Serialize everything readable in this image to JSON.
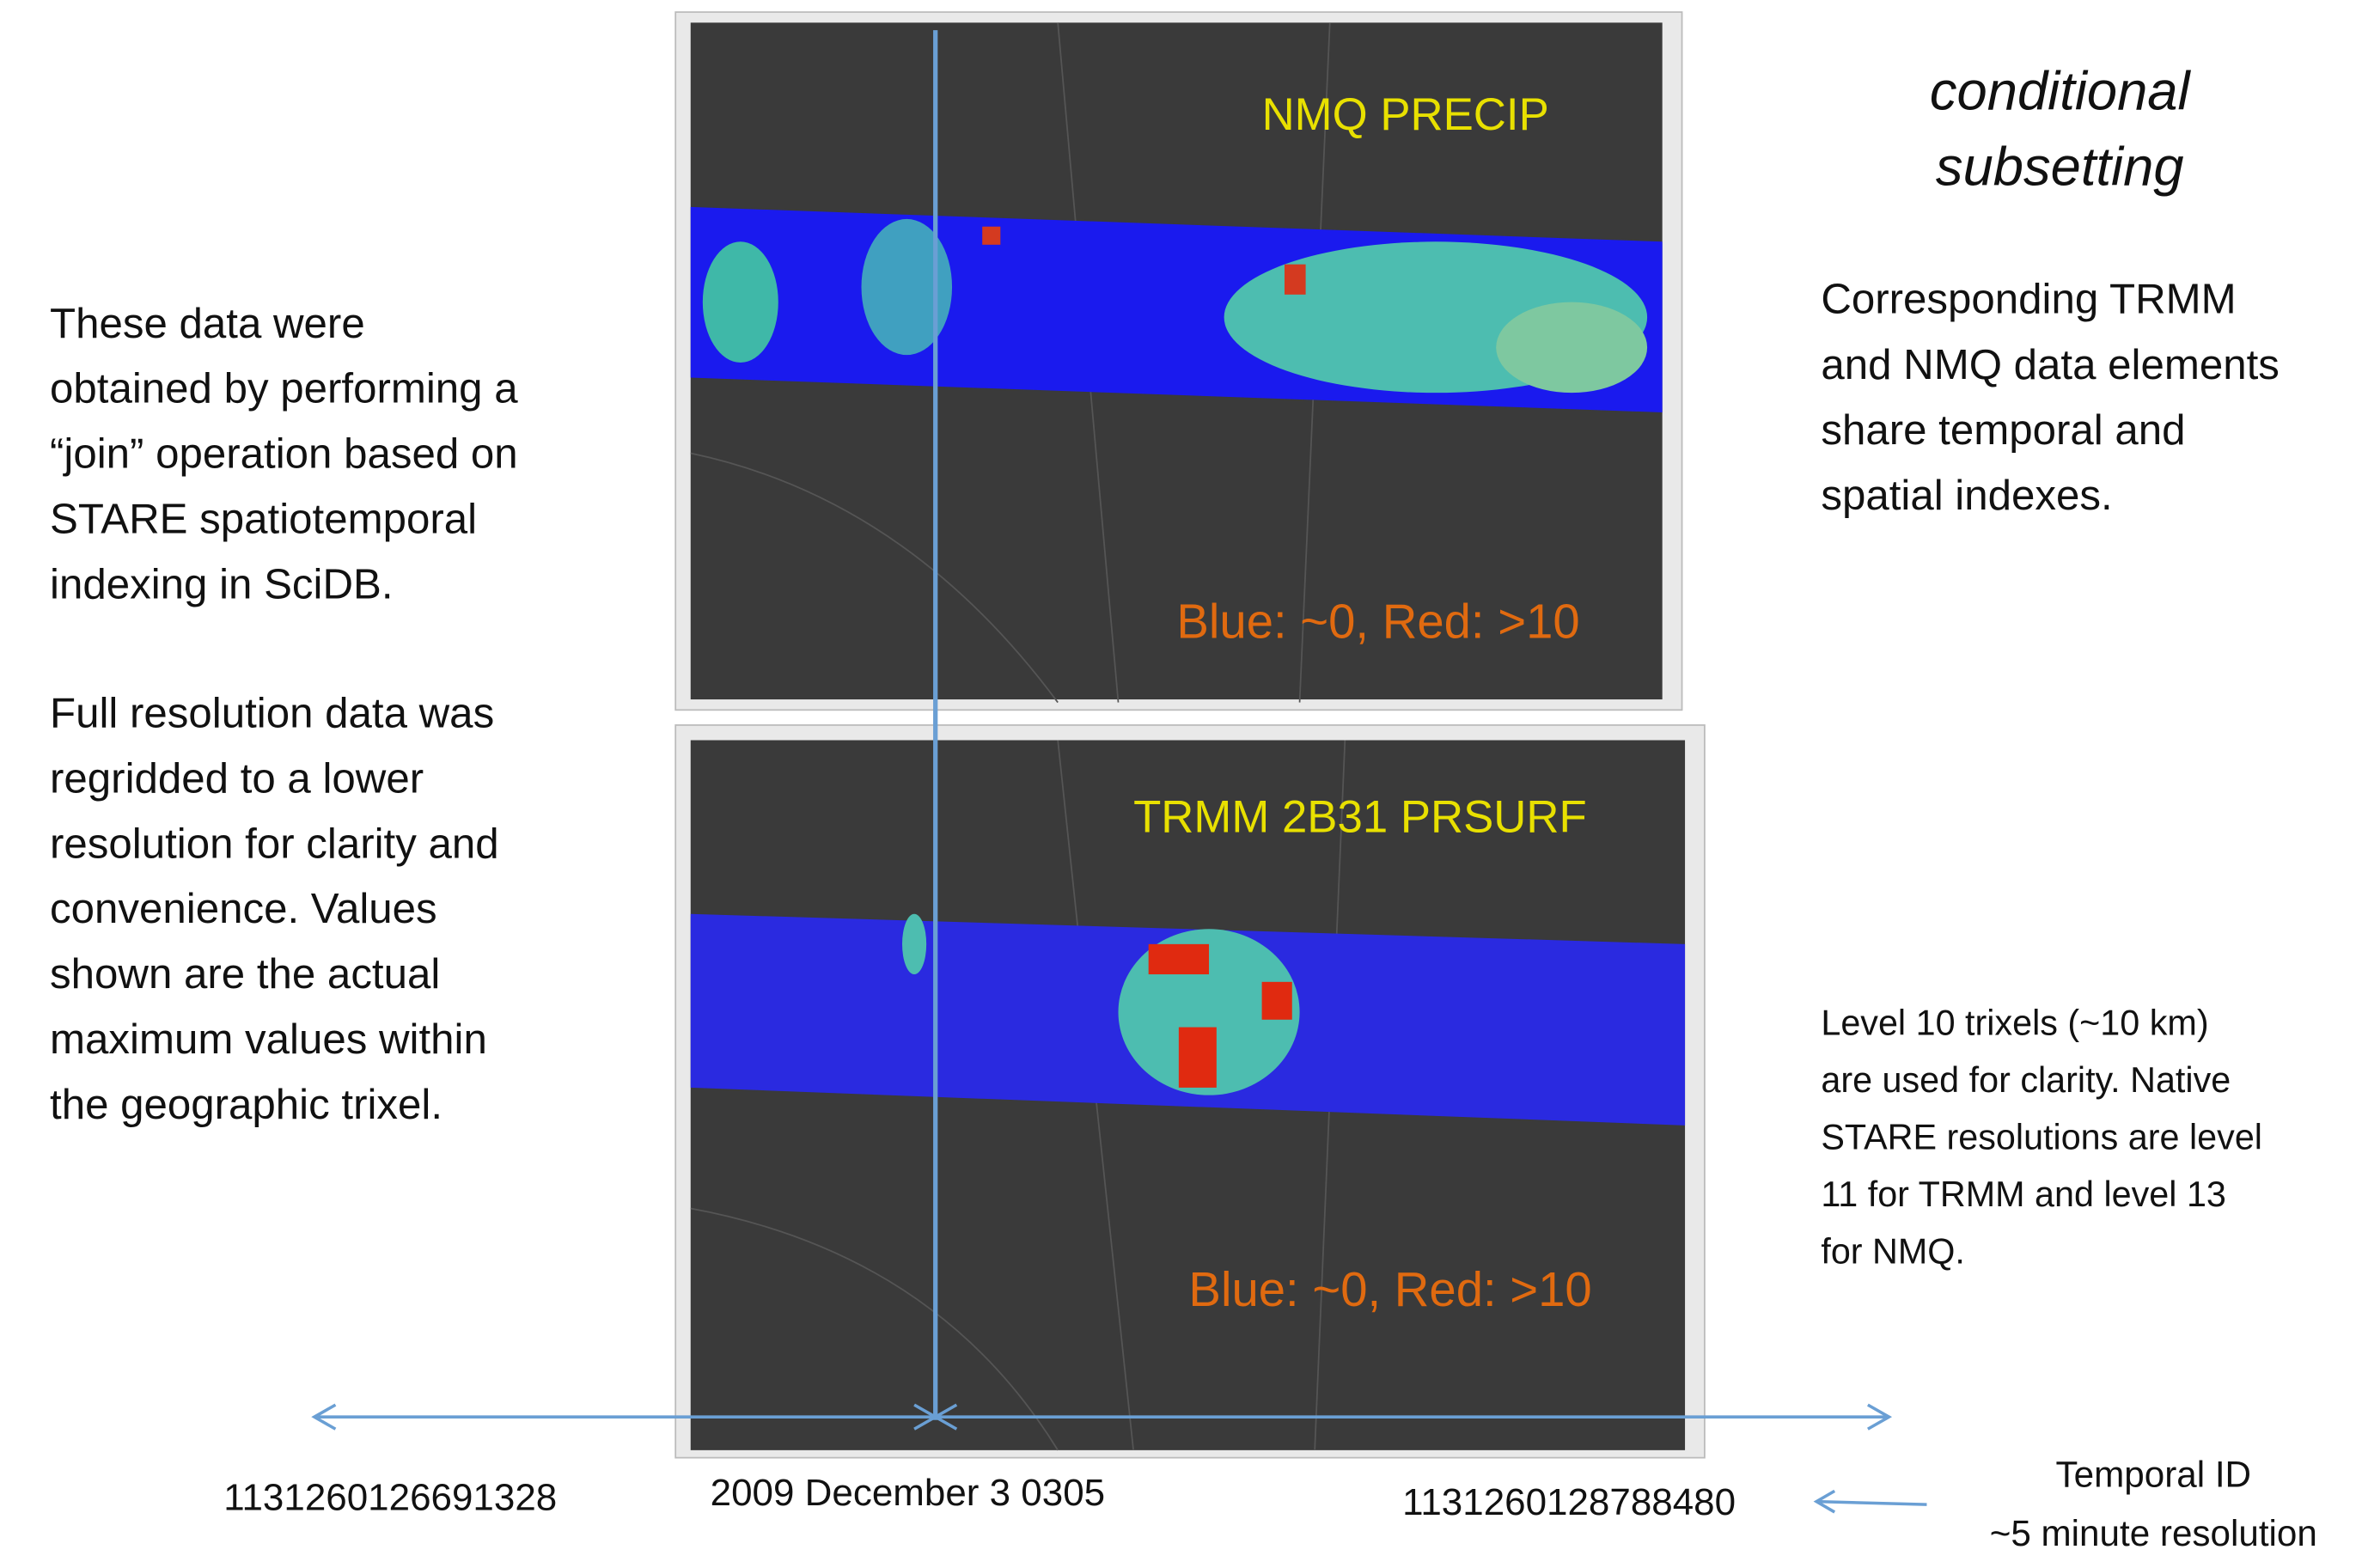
{
  "left_notes": {
    "paragraphs": [
      [
        "These data were",
        "obtained by performing a",
        "“join” operation based on",
        "STARE spatiotemporal",
        "indexing in SciDB."
      ],
      [
        "Full resolution data was",
        "regridded to a lower",
        "resolution for clarity and",
        "convenience. Values",
        "shown are the actual",
        "maximum values within",
        "the geographic trixel."
      ]
    ]
  },
  "panels": [
    {
      "title": "NMQ PRECIP",
      "legend": "Blue: ~0, Red: >10"
    },
    {
      "title": "TRMM 2B31 PRSURF",
      "legend": "Blue: ~0, Red: >10"
    }
  ],
  "right_notes": {
    "heading": [
      "conditional",
      "subsetting"
    ],
    "paragraphs": [
      [
        "Corresponding TRMM",
        "and NMQ data elements",
        "share temporal and",
        "spatial indexes."
      ],
      [
        "Level 10 trixels (~10 km)",
        "are used for clarity. Native",
        "STARE resolutions are level",
        "11 for TRMM and level 13",
        "for NMQ."
      ]
    ]
  },
  "timeline": {
    "start_id": "1131260126691328",
    "time": "2009 December 3 0305",
    "end_id": "1131260128788480",
    "caption": [
      "Temporal ID",
      "~5 minute resolution"
    ]
  }
}
